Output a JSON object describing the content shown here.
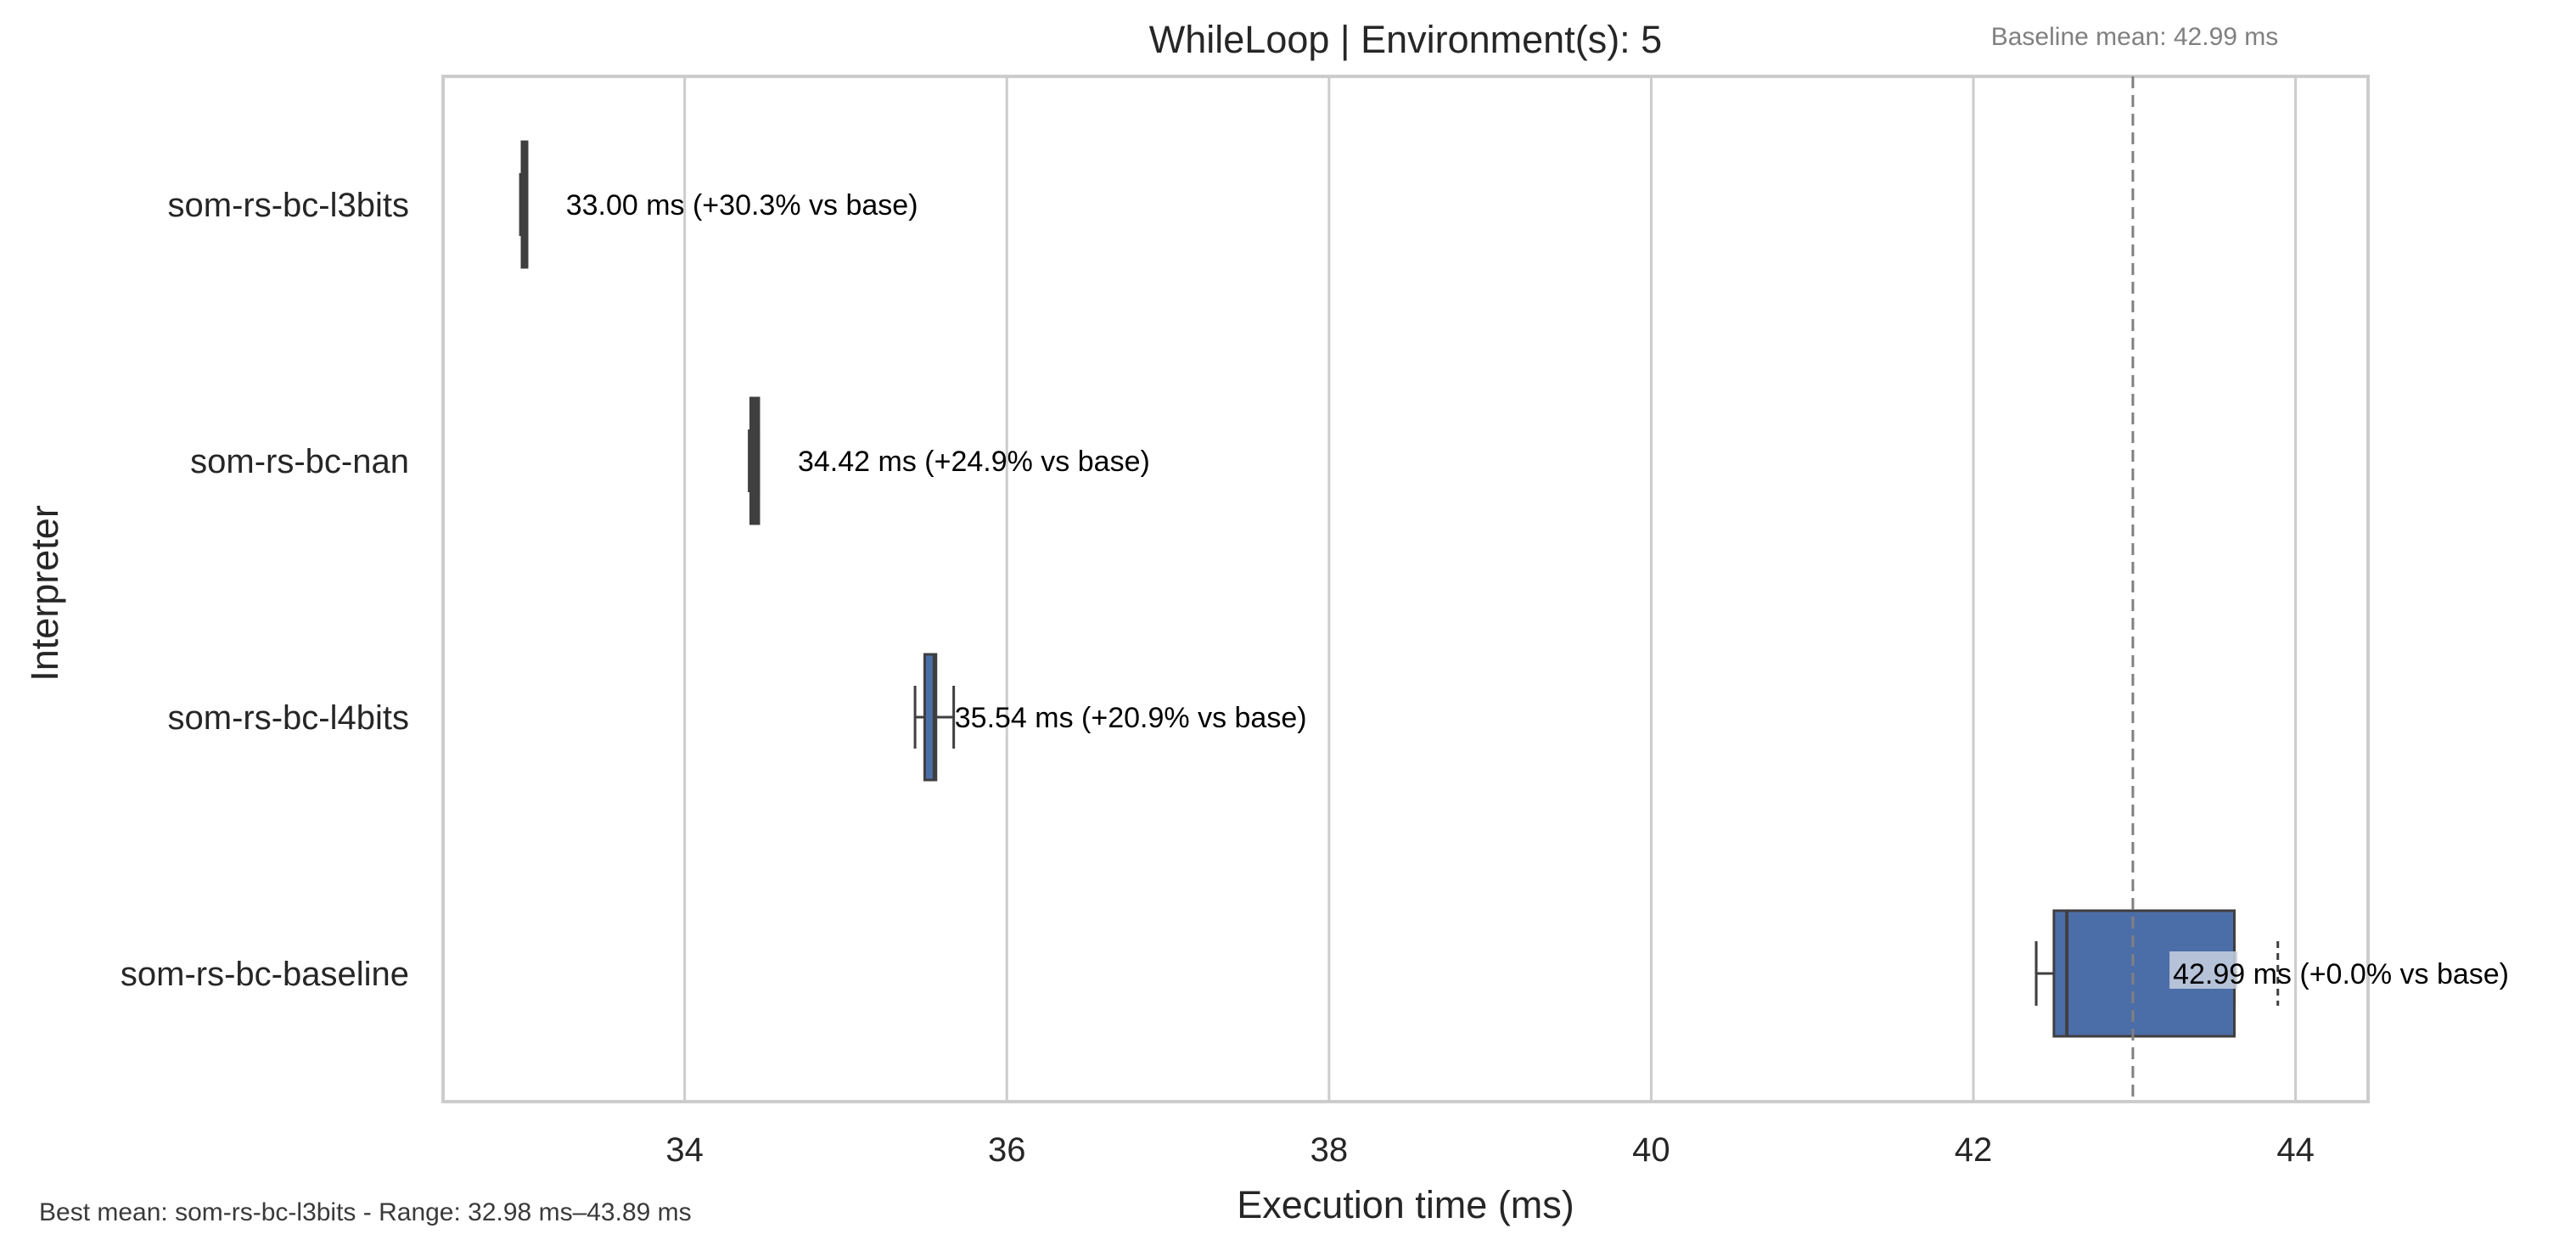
{
  "chart_data": {
    "type": "box",
    "orientation": "horizontal",
    "title": "WhileLoop | Environment(s): 5",
    "xlabel": "Execution time (ms)",
    "ylabel": "Interpreter",
    "xlim": [
      32.5,
      44.45
    ],
    "xticks": [
      34,
      36,
      38,
      40,
      42,
      44
    ],
    "grid": "vertical",
    "categories": [
      "som-rs-bc-l3bits",
      "som-rs-bc-nan",
      "som-rs-bc-l4bits",
      "som-rs-bc-baseline"
    ],
    "boxes": [
      {
        "name": "som-rs-bc-l3bits",
        "whisker_low": 32.98,
        "q1": 32.99,
        "median": 33.0,
        "q3": 33.02,
        "whisker_high": 33.02,
        "flier_low": null,
        "flier_high": null,
        "label": "33.00 ms  (+30.3% vs base)"
      },
      {
        "name": "som-rs-bc-nan",
        "whisker_low": 34.4,
        "q1": 34.41,
        "median": 34.42,
        "q3": 34.46,
        "whisker_high": 34.46,
        "flier_low": null,
        "flier_high": null,
        "label": "34.42 ms  (+24.9% vs base)"
      },
      {
        "name": "som-rs-bc-l4bits",
        "whisker_low": 35.43,
        "q1": 35.49,
        "median": 35.55,
        "q3": 35.56,
        "whisker_high": 35.67,
        "flier_low": null,
        "flier_high": null,
        "label": "35.54 ms  (+20.9% vs base)"
      },
      {
        "name": "som-rs-bc-baseline",
        "whisker_low": 42.39,
        "q1": 42.5,
        "median": 42.58,
        "q3": 43.62,
        "whisker_high": 43.62,
        "flier_low": 42.39,
        "flier_high": 43.89,
        "label": "42.99 ms  (+0.0% vs base)"
      }
    ],
    "baseline_line": 42.99,
    "baseline_label": "Baseline mean: 42.99 ms",
    "footnote": "Best mean: som-rs-bc-l3bits - Range: 32.98 ms–43.89 ms"
  },
  "colors": {
    "box_fill": "#4c6ea8",
    "box_edge": "#3f3f3f",
    "grid": "#cccccc",
    "frame": "#cccccc",
    "baseline_line": "#808080",
    "label_highlight": "#c8d1e0"
  }
}
